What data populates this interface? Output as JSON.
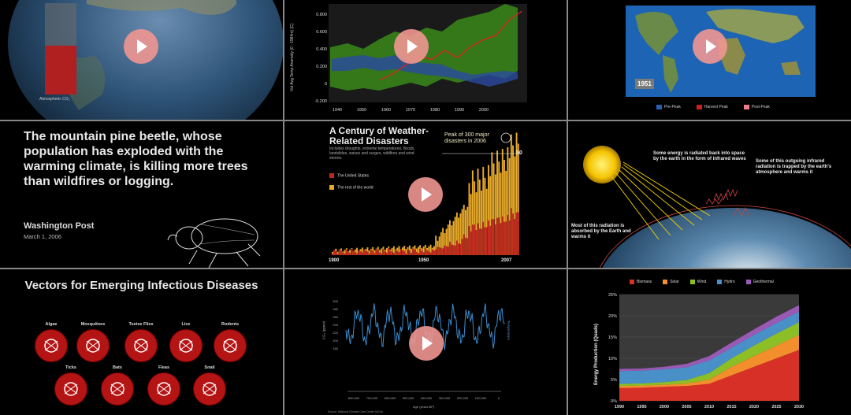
{
  "panel1": {
    "co2_label": "Atmospheric CO₂"
  },
  "panel2": {
    "ylabel": "Vol Avg Temp Anomaly (0 - 1984m) [C]",
    "yticks": [
      "0.800",
      "0.600",
      "0.400",
      "0.200",
      "0",
      "-0.200"
    ],
    "xticks": [
      "1940",
      "1950",
      "1960",
      "1970",
      "1980",
      "1990",
      "2000"
    ]
  },
  "panel3": {
    "year": "1951",
    "legend": [
      {
        "label": "Pre-Peak",
        "color": "#2a5fb0"
      },
      {
        "label": "Harvest Peak",
        "color": "#c82020"
      },
      {
        "label": "Post-Peak",
        "color": "#f07a8a"
      }
    ]
  },
  "panel4": {
    "quote": "The mountain pine beetle, whose population has exploded with the warming climate, is killing more trees than wildfires or logging.",
    "source": "Washington Post",
    "date": "March 1, 2006"
  },
  "panel5": {
    "title": "A Century of Weather-Related Disasters",
    "subtitle": "Includes droughts, extreme temperatures, floods, landslides, waves and surges, wildfires and wind storms.",
    "legend": [
      {
        "label": "The United States",
        "color": "#c0281e"
      },
      {
        "label": "The rest of the world",
        "color": "#e8aa2a"
      }
    ],
    "annotation": "Peak of 300 major disasters in 2006",
    "ref_value": "50",
    "xticks": [
      "1900",
      "1950",
      "2007"
    ]
  },
  "panel6": {
    "callout_top": "Some energy is radiated back into space by the earth in the form of infrared waves",
    "callout_right": "Some of this outgoing infrared radiation is trapped by the earth's atmosphere and warms it",
    "callout_left": "Most of this radiation is absorbed by the Earth and warms it"
  },
  "panel7": {
    "title": "Vectors for Emerging Infectious Diseases",
    "vectors_row1": [
      {
        "label": "Algae",
        "icon": "algae-icon"
      },
      {
        "label": "Mosquitoes",
        "icon": "mosquito-icon"
      },
      {
        "label": "Tsetse Flies",
        "icon": "tsetse-fly-icon"
      },
      {
        "label": "Lice",
        "icon": "louse-icon"
      },
      {
        "label": "Rodents",
        "icon": "rodent-icon"
      }
    ],
    "vectors_row2": [
      {
        "label": "Ticks",
        "icon": "tick-icon"
      },
      {
        "label": "Bats",
        "icon": "bat-icon"
      },
      {
        "label": "Fleas",
        "icon": "flea-icon"
      },
      {
        "label": "Snail",
        "icon": "snail-icon"
      }
    ]
  },
  "panel8": {
    "yticks": [
      "300",
      "280",
      "260",
      "240",
      "220",
      "200",
      "180"
    ],
    "xticks": [
      "800,000",
      "700,000",
      "600,000",
      "500,000",
      "400,000",
      "300,000",
      "200,000",
      "100,000",
      "0"
    ],
    "xlabel": "Age (years BP)",
    "ylabel": "CO₂ (ppmv)",
    "ylabel_right": "Temperature",
    "footer": "Source: National Climatic Data Center NOAA"
  },
  "panel9": {
    "ylabel": "Energy Production (Quads)",
    "yticks": [
      "25%",
      "20%",
      "15%",
      "10%",
      "5%",
      "0%"
    ],
    "xticks": [
      "1990",
      "1995",
      "2000",
      "2005",
      "2010",
      "2015",
      "2020",
      "2025",
      "2030"
    ],
    "legend": [
      {
        "label": "Biomass",
        "color": "#d73027"
      },
      {
        "label": "Solar",
        "color": "#f28e2b"
      },
      {
        "label": "Wind",
        "color": "#8cbf26"
      },
      {
        "label": "Hydro",
        "color": "#4a90c8"
      },
      {
        "label": "Geothermal",
        "color": "#9b59b6"
      }
    ]
  },
  "chart_data": [
    {
      "type": "line",
      "ylabel": "Vol Avg Temp Anomaly (0 - 1984m) [C]",
      "xlim": [
        1935,
        2012
      ],
      "ylim": [
        -0.2,
        0.9
      ],
      "x": [
        1955,
        1960,
        1965,
        1970,
        1975,
        1980,
        1985,
        1990,
        1995,
        2000,
        2005,
        2010
      ],
      "series": [
        {
          "values": [
            0.05,
            0.12,
            0.22,
            0.32,
            0.28,
            0.38,
            0.3,
            0.42,
            0.5,
            0.55,
            0.72,
            0.82
          ]
        }
      ]
    },
    {
      "type": "bar",
      "title": "A Century of Weather-Related Disasters",
      "categories": [
        "1900",
        "1950",
        "2007"
      ],
      "series": [
        {
          "name": "The United States",
          "values": [
            2,
            5,
            60
          ]
        },
        {
          "name": "The rest of the world",
          "values": [
            5,
            20,
            300
          ]
        }
      ]
    },
    {
      "type": "area",
      "ylabel": "Energy Production (Quads)",
      "categories": [
        "1990",
        "1995",
        "2000",
        "2005",
        "2010",
        "2015",
        "2020",
        "2025",
        "2030"
      ],
      "ylim": [
        0,
        25
      ],
      "series": [
        {
          "name": "Biomass",
          "values": [
            3,
            3.1,
            3.3,
            3.5,
            4,
            6,
            8,
            10,
            12
          ]
        },
        {
          "name": "Solar",
          "values": [
            0.5,
            0.5,
            0.5,
            0.6,
            1,
            2,
            2.5,
            3,
            3.5
          ]
        },
        {
          "name": "Wind",
          "values": [
            0.5,
            0.5,
            0.6,
            0.8,
            1.5,
            2,
            2.5,
            2.8,
            3
          ]
        },
        {
          "name": "Hydro",
          "values": [
            3,
            3,
            3,
            3,
            3,
            2.5,
            2.5,
            2.5,
            2.5
          ]
        },
        {
          "name": "Geothermal",
          "values": [
            0.5,
            0.5,
            0.6,
            0.8,
            1,
            1.2,
            1.3,
            1.5,
            1.5
          ]
        }
      ]
    }
  ]
}
